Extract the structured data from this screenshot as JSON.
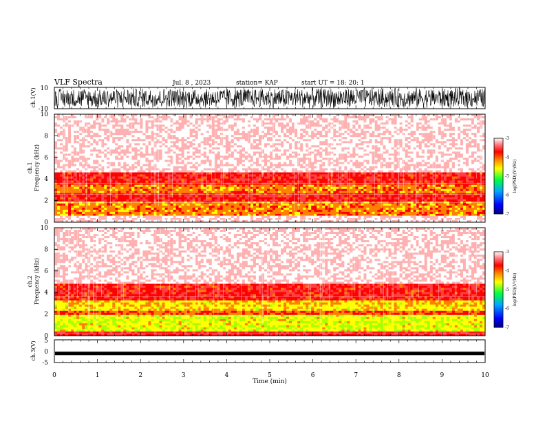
{
  "header": {
    "title": "VLF Spectra",
    "date": "Jul. 8 , 2023",
    "station": "station= KAP",
    "start": "start UT = 18: 20: 1"
  },
  "colors": {
    "colormap": [
      "#00007f",
      "#0000ff",
      "#00a8ff",
      "#00ff40",
      "#a8ff00",
      "#ffff00",
      "#ff8000",
      "#ff0000",
      "#ff4040",
      "#ffb0b0",
      "#ffffff"
    ],
    "waveform": "#000000"
  },
  "chart_data": [
    {
      "type": "line",
      "panel": "ch1-waveform",
      "ylabel": "ch.1(V)",
      "ylim": [
        -10,
        10
      ],
      "yticks": [
        "10",
        "-10"
      ],
      "xlim": [
        0,
        10
      ],
      "description": "dense noise waveform filling approximately -10 to 10 V"
    },
    {
      "type": "heatmap",
      "panel": "ch1-spectrogram",
      "ylabel": "ch.1 Frequency (kHz)",
      "ylim": [
        0,
        10
      ],
      "yticks": [
        "0",
        "2",
        "4",
        "6",
        "8",
        "10"
      ],
      "xlim": [
        0,
        10
      ],
      "colorbar": {
        "label": "log(PSD)(V²/Hz)",
        "range": [
          -7,
          -3
        ],
        "ticks": [
          "-3",
          "-4",
          "-5",
          "-6",
          "-7"
        ]
      },
      "bands": [
        {
          "from_khz": 0.0,
          "to_khz": 0.6,
          "level": -3.2
        },
        {
          "from_khz": 0.6,
          "to_khz": 2.0,
          "level": -4.6
        },
        {
          "from_khz": 2.0,
          "to_khz": 2.6,
          "level": -4.1
        },
        {
          "from_khz": 2.6,
          "to_khz": 3.4,
          "level": -4.6
        },
        {
          "from_khz": 3.4,
          "to_khz": 4.6,
          "level": -4.1
        },
        {
          "from_khz": 4.6,
          "to_khz": 10.0,
          "level": -3.2
        }
      ]
    },
    {
      "type": "heatmap",
      "panel": "ch2-spectrogram",
      "ylabel": "ch.2 Frequency (kHz)",
      "ylim": [
        0,
        10
      ],
      "yticks": [
        "0",
        "2",
        "4",
        "6",
        "8",
        "10"
      ],
      "xlim": [
        0,
        10
      ],
      "colorbar": {
        "label": "log(PSD)(V²/Hz)",
        "range": [
          -7,
          -3
        ],
        "ticks": [
          "-3",
          "-4",
          "-5",
          "-6",
          "-7"
        ]
      },
      "bands": [
        {
          "from_khz": 0.0,
          "to_khz": 0.4,
          "level": -4.0
        },
        {
          "from_khz": 0.4,
          "to_khz": 2.0,
          "level": -5.1
        },
        {
          "from_khz": 2.0,
          "to_khz": 2.4,
          "level": -4.4
        },
        {
          "from_khz": 2.4,
          "to_khz": 3.2,
          "level": -4.9
        },
        {
          "from_khz": 3.2,
          "to_khz": 4.8,
          "level": -4.1
        },
        {
          "from_khz": 4.8,
          "to_khz": 10.0,
          "level": -3.2
        }
      ]
    },
    {
      "type": "line",
      "panel": "ch3-waveform",
      "ylabel": "ch.3(V)",
      "ylim": [
        -5,
        5
      ],
      "yticks": [
        "5",
        "0",
        "-5"
      ],
      "xlim": [
        0,
        10
      ],
      "description": "flat thick trace near -1 V"
    }
  ],
  "xaxis": {
    "label": "Time (min)",
    "ticks": [
      "0",
      "1",
      "2",
      "3",
      "4",
      "5",
      "6",
      "7",
      "8",
      "9",
      "10"
    ]
  }
}
